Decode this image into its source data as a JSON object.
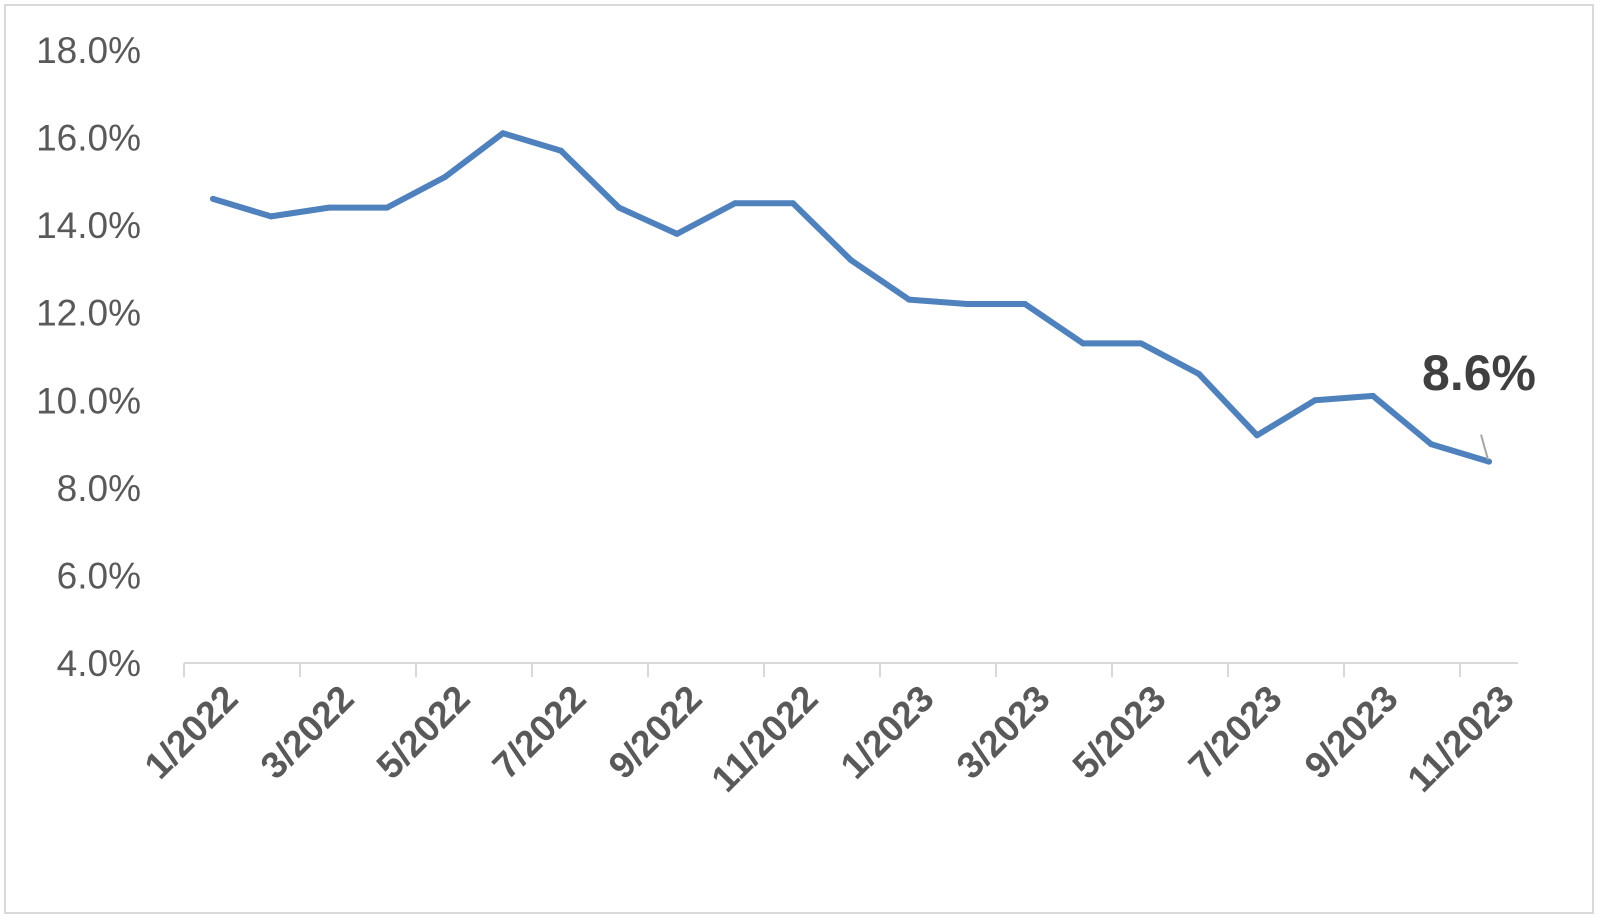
{
  "chart_data": {
    "type": "line",
    "title": "",
    "xlabel": "",
    "ylabel": "",
    "ylim": [
      4.0,
      18.0
    ],
    "y_ticks": [
      "4.0%",
      "6.0%",
      "8.0%",
      "10.0%",
      "12.0%",
      "14.0%",
      "16.0%",
      "18.0%"
    ],
    "x_ticks": [
      "1/2022",
      "3/2022",
      "5/2022",
      "7/2022",
      "9/2022",
      "11/2022",
      "1/2023",
      "3/2023",
      "5/2023",
      "7/2023",
      "9/2023",
      "11/2023"
    ],
    "x": [
      "1/2022",
      "2/2022",
      "3/2022",
      "4/2022",
      "5/2022",
      "6/2022",
      "7/2022",
      "8/2022",
      "9/2022",
      "10/2022",
      "11/2022",
      "12/2022",
      "1/2023",
      "2/2023",
      "3/2023",
      "4/2023",
      "5/2023",
      "6/2023",
      "7/2023",
      "8/2023",
      "9/2023",
      "10/2023",
      "11/2023"
    ],
    "series": [
      {
        "values": [
          14.6,
          14.2,
          14.4,
          14.4,
          15.1,
          16.1,
          15.7,
          14.4,
          13.8,
          14.5,
          14.5,
          13.2,
          12.3,
          12.2,
          12.2,
          11.3,
          11.3,
          10.6,
          9.2,
          10.0,
          10.1,
          9.0,
          8.6
        ],
        "color": "#4F81BD"
      }
    ],
    "data_label": {
      "text": "8.6%",
      "point_index": 22
    },
    "grid": false,
    "legend": "none"
  }
}
